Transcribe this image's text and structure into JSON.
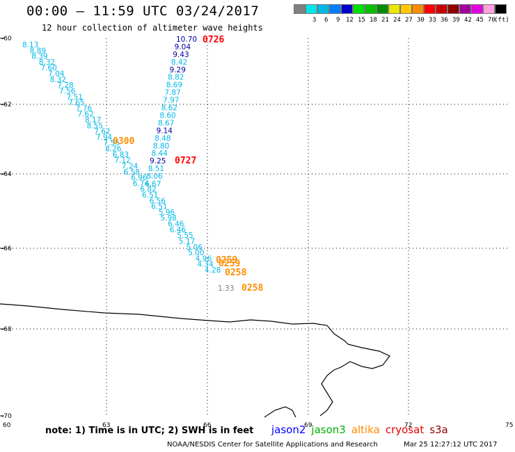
{
  "header": {
    "title": "00:00 – 11:59 UTC 03/24/2017",
    "subtitle": "12 hour collection of altimeter wave heights"
  },
  "legend": {
    "unit": "(ft)",
    "levels": [
      {
        "label": "",
        "color": "#808080"
      },
      {
        "label": "3",
        "color": "#00e8e8"
      },
      {
        "label": "6",
        "color": "#00b8e8"
      },
      {
        "label": "9",
        "color": "#0080ff"
      },
      {
        "label": "12",
        "color": "#0000c8"
      },
      {
        "label": "15",
        "color": "#00e000"
      },
      {
        "label": "18",
        "color": "#00c000"
      },
      {
        "label": "21",
        "color": "#008c00"
      },
      {
        "label": "24",
        "color": "#e8e800"
      },
      {
        "label": "27",
        "color": "#ffc800"
      },
      {
        "label": "30",
        "color": "#ff8c00"
      },
      {
        "label": "33",
        "color": "#ff0000"
      },
      {
        "label": "36",
        "color": "#c80000"
      },
      {
        "label": "39",
        "color": "#8c0000"
      },
      {
        "label": "42",
        "color": "#a000a0"
      },
      {
        "label": "45",
        "color": "#e000e0"
      },
      {
        "label": "70",
        "color": "#ffa0e0"
      },
      {
        "label": "",
        "color": "#000000"
      }
    ]
  },
  "axes": {
    "lon_ticks": [
      "60",
      "63",
      "66",
      "69",
      "72",
      "75"
    ],
    "lat_ticks": [
      "-60",
      "-62",
      "-64",
      "-66",
      "-68",
      "-70"
    ]
  },
  "tracks": {
    "west_track_swh": [
      "8.13",
      "8.89",
      "8.39",
      "8.32",
      "7.60",
      "7.04",
      "8.32",
      "7.28",
      "7.56",
      "7.51",
      "7.65",
      "7.76",
      "7.62",
      "8.17",
      "8.55",
      "7.62",
      "7.94",
      "7.55",
      "8.26",
      "6.83",
      "7.12",
      "7.24",
      "6.58",
      "6.96",
      "6.74",
      "6.82",
      "6.51",
      "6.56",
      "6.51",
      "5.96",
      "5.98",
      "6.46",
      "6.46",
      "5.55",
      "5.17",
      "5.06",
      "5.00",
      "4.96",
      "4.34",
      "4.28"
    ],
    "north_track_swh": [
      "10.70",
      "9.04",
      "9.43",
      "8.42",
      "9.29",
      "8.82",
      "8.69",
      "7.87",
      "7.97",
      "8.62",
      "8.60",
      "8.67",
      "9.14",
      "8.48",
      "8.80",
      "8.44",
      "9.25",
      "8.51",
      "8.06",
      "6.67"
    ],
    "extra_swh": [
      "1.33"
    ],
    "time_labels": [
      "0726",
      "0300",
      "0727",
      "0259",
      "0259",
      "0258",
      "0258"
    ],
    "time_colors": {
      "jason2": "#0000ff",
      "altika": "#ff8c00",
      "cryosat": "#ff0000"
    },
    "swh_colors": {
      "cyan": "#00b8e8",
      "navy": "#0000a0",
      "gray": "#808080"
    }
  },
  "footer": {
    "note": "note:  1) Time is in UTC;  2) SWH is in feet",
    "satellites": [
      {
        "name": "jason2",
        "color": "#0000ff"
      },
      {
        "name": "jason3",
        "color": "#00b000"
      },
      {
        "name": "altika",
        "color": "#ff8c00"
      },
      {
        "name": "cryosat",
        "color": "#e00000"
      },
      {
        "name": "s3a",
        "color": "#8c0000"
      }
    ],
    "credit": "NOAA/NESDIS Center for Satellite Applications and Research",
    "timestamp": "Mar 25 12:27:12 UTC 2017"
  }
}
